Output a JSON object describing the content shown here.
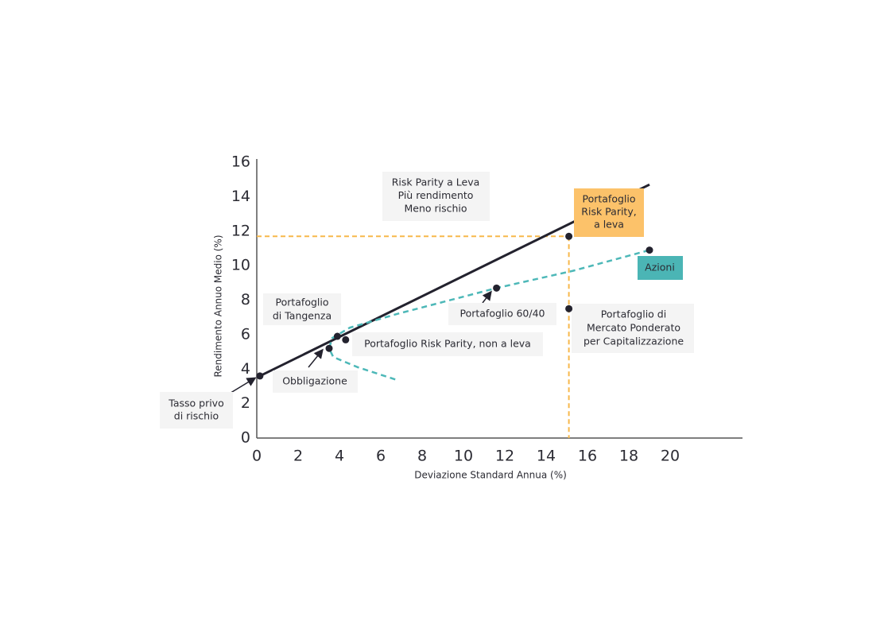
{
  "chart_data": {
    "type": "scatter",
    "x_label": "Deviazione Standard Annua (%)",
    "y_label": "Rendimento Annuo Medio (%)",
    "xlim": [
      0,
      23.5
    ],
    "ylim": [
      0,
      16
    ],
    "xticks": [
      0,
      2,
      4,
      6,
      8,
      10,
      12,
      14,
      16,
      18,
      20
    ],
    "yticks": [
      0,
      2,
      4,
      6,
      8,
      10,
      12,
      14,
      16
    ],
    "lines": [
      {
        "color": "#23222e",
        "style": "solid",
        "x": [
          0.15,
          19.0
        ],
        "y": [
          3.6,
          14.7
        ]
      },
      {
        "color": "#4db8b8",
        "style": "dashed",
        "x": [
          6.7,
          4.9,
          3.7,
          3.5,
          3.65,
          4.5,
          6.8,
          11.6,
          15.3,
          19.0
        ],
        "y": [
          3.4,
          4.1,
          4.7,
          5.2,
          5.8,
          6.4,
          7.2,
          8.7,
          9.7,
          10.9
        ]
      }
    ],
    "point_color": "#23222e",
    "guide_color": "#f7b84b",
    "points": [
      {
        "label": [
          "Tasso privo",
          "di rischio"
        ],
        "x": 0.15,
        "y": 3.6
      },
      {
        "label": [
          "Obbligazione"
        ],
        "x": 3.5,
        "y": 5.2
      },
      {
        "label": [
          "Portafoglio",
          "di Tangenza"
        ],
        "x": 3.9,
        "y": 5.9
      },
      {
        "label": [
          "Portafoglio Risk Parity, non a leva"
        ],
        "x": 4.3,
        "y": 5.7
      },
      {
        "label": [
          "Portafoglio 60/40"
        ],
        "x": 11.6,
        "y": 8.7
      },
      {
        "label": [
          "Portafoglio di",
          "Mercato Ponderato",
          "per Capitalizzazione"
        ],
        "x": 15.1,
        "y": 7.5
      },
      {
        "label": [
          "Azioni"
        ],
        "x": 19.0,
        "y": 10.9,
        "box_color": "#4bb5b5"
      },
      {
        "label": [
          "Portafoglio",
          "Risk Parity,",
          "a leva"
        ],
        "x": 15.1,
        "y": 11.7,
        "box_color": "#fcc26a",
        "guides": true
      }
    ],
    "annotations": [
      {
        "text": [
          "Risk Parity a Leva",
          "Più rendimento",
          "Meno rischio"
        ]
      }
    ]
  }
}
